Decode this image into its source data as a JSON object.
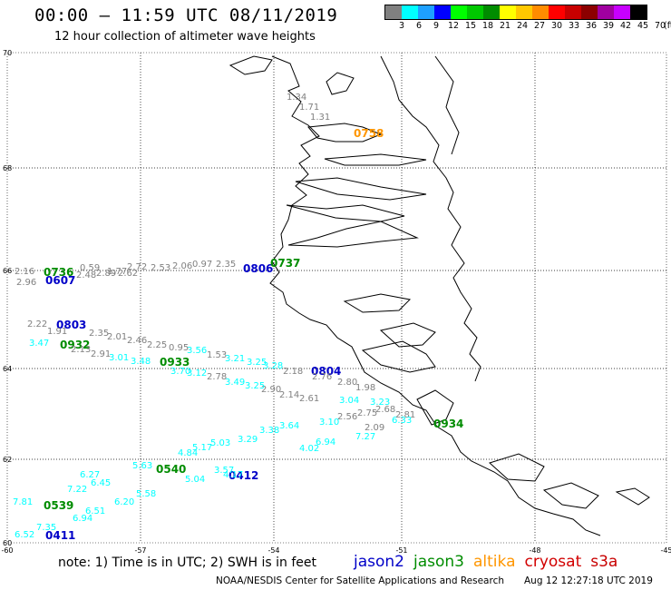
{
  "header": {
    "title": "00:00 – 11:59 UTC 08/11/2019",
    "subtitle": "12 hour collection of altimeter wave heights"
  },
  "legend": {
    "colors": [
      "#808080",
      "#00ffff",
      "#1ea0ff",
      "#0000ff",
      "#00ff00",
      "#00c800",
      "#008c00",
      "#ffff00",
      "#ffc800",
      "#ff8c00",
      "#ff0000",
      "#c80000",
      "#8c0000",
      "#a000a0",
      "#c800ff",
      "#000000"
    ],
    "labels": [
      "3",
      "6",
      "9",
      "12",
      "15",
      "18",
      "21",
      "24",
      "27",
      "30",
      "33",
      "36",
      "39",
      "42",
      "45",
      "70",
      "(ft)"
    ]
  },
  "axes": {
    "lat_labels": [
      "70",
      "68",
      "66",
      "64",
      "62",
      "60"
    ],
    "lon_labels": [
      "-60",
      "-57",
      "-54",
      "-51",
      "-48",
      "-45"
    ]
  },
  "tracks": {
    "colors": {
      "gray": "#808080",
      "cyan": "#00ffff",
      "jason2": "#0000c8",
      "jason3": "#008c00",
      "altika": "#ff9600",
      "cryosat": "#d20000",
      "s3a": "#c80000"
    },
    "labels": [
      {
        "t": "0607",
        "c": "jason2"
      },
      {
        "t": "0736",
        "c": "jason3"
      },
      {
        "t": "0806",
        "c": "jason2"
      },
      {
        "t": "0737",
        "c": "jason3"
      },
      {
        "t": "0803",
        "c": "jason2"
      },
      {
        "t": "0932",
        "c": "jason3"
      },
      {
        "t": "0933",
        "c": "jason3"
      },
      {
        "t": "0804",
        "c": "jason2"
      },
      {
        "t": "0934",
        "c": "jason3"
      },
      {
        "t": "0540",
        "c": "jason3"
      },
      {
        "t": "0412",
        "c": "jason2"
      },
      {
        "t": "0539",
        "c": "jason3"
      },
      {
        "t": "0411",
        "c": "jason2"
      },
      {
        "t": "0758",
        "c": "altika"
      }
    ],
    "values": [
      {
        "t": "1.34",
        "c": "gray"
      },
      {
        "t": "1.71",
        "c": "gray"
      },
      {
        "t": "1.31",
        "c": "gray"
      },
      {
        "t": "2.16",
        "c": "gray"
      },
      {
        "t": "2.96",
        "c": "gray"
      },
      {
        "t": "0.59",
        "c": "gray"
      },
      {
        "t": "1.77",
        "c": "gray"
      },
      {
        "t": "2.72",
        "c": "gray"
      },
      {
        "t": "2.53",
        "c": "gray"
      },
      {
        "t": "2.06",
        "c": "gray"
      },
      {
        "t": "0.97",
        "c": "gray"
      },
      {
        "t": "2.35",
        "c": "gray"
      },
      {
        "t": "2.48",
        "c": "gray"
      },
      {
        "t": "2.89",
        "c": "gray"
      },
      {
        "t": "2.62",
        "c": "gray"
      },
      {
        "t": "2.22",
        "c": "gray"
      },
      {
        "t": "1.91",
        "c": "gray"
      },
      {
        "t": "2.35",
        "c": "gray"
      },
      {
        "t": "2.01",
        "c": "gray"
      },
      {
        "t": "2.46",
        "c": "gray"
      },
      {
        "t": "2.25",
        "c": "gray"
      },
      {
        "t": "0.95",
        "c": "gray"
      },
      {
        "t": "1.53",
        "c": "gray"
      },
      {
        "t": "2.13",
        "c": "gray"
      },
      {
        "t": "2.91",
        "c": "gray"
      },
      {
        "t": "2.78",
        "c": "gray"
      },
      {
        "t": "2.18",
        "c": "gray"
      },
      {
        "t": "2.76",
        "c": "gray"
      },
      {
        "t": "2.80",
        "c": "gray"
      },
      {
        "t": "1.98",
        "c": "gray"
      },
      {
        "t": "2.90",
        "c": "gray"
      },
      {
        "t": "2.14",
        "c": "gray"
      },
      {
        "t": "2.61",
        "c": "gray"
      },
      {
        "t": "2.56",
        "c": "gray"
      },
      {
        "t": "2.75",
        "c": "gray"
      },
      {
        "t": "2.68",
        "c": "gray"
      },
      {
        "t": "2.81",
        "c": "gray"
      },
      {
        "t": "2.09",
        "c": "gray"
      },
      {
        "t": "3.47",
        "c": "cyan"
      },
      {
        "t": "3.01",
        "c": "cyan"
      },
      {
        "t": "3.48",
        "c": "cyan"
      },
      {
        "t": "3.70",
        "c": "cyan"
      },
      {
        "t": "3.12",
        "c": "cyan"
      },
      {
        "t": "3.56",
        "c": "cyan"
      },
      {
        "t": "3.21",
        "c": "cyan"
      },
      {
        "t": "3.25",
        "c": "cyan"
      },
      {
        "t": "3.49",
        "c": "cyan"
      },
      {
        "t": "3.25",
        "c": "cyan"
      },
      {
        "t": "3.28",
        "c": "cyan"
      },
      {
        "t": "3.04",
        "c": "cyan"
      },
      {
        "t": "3.23",
        "c": "cyan"
      },
      {
        "t": "3.10",
        "c": "cyan"
      },
      {
        "t": "3.64",
        "c": "cyan"
      },
      {
        "t": "3.38",
        "c": "cyan"
      },
      {
        "t": "3.29",
        "c": "cyan"
      },
      {
        "t": "5.03",
        "c": "cyan"
      },
      {
        "t": "5.17",
        "c": "cyan"
      },
      {
        "t": "4.84",
        "c": "cyan"
      },
      {
        "t": "5.63",
        "c": "cyan"
      },
      {
        "t": "6.27",
        "c": "cyan"
      },
      {
        "t": "6.45",
        "c": "cyan"
      },
      {
        "t": "7.22",
        "c": "cyan"
      },
      {
        "t": "7.81",
        "c": "cyan"
      },
      {
        "t": "6.94",
        "c": "cyan"
      },
      {
        "t": "7.27",
        "c": "cyan"
      },
      {
        "t": "3.57",
        "c": "cyan"
      },
      {
        "t": "4.17",
        "c": "cyan"
      },
      {
        "t": "5.04",
        "c": "cyan"
      },
      {
        "t": "5.58",
        "c": "cyan"
      },
      {
        "t": "6.20",
        "c": "cyan"
      },
      {
        "t": "6.51",
        "c": "cyan"
      },
      {
        "t": "6.94",
        "c": "cyan"
      },
      {
        "t": "7.35",
        "c": "cyan"
      },
      {
        "t": "6.52",
        "c": "cyan"
      },
      {
        "t": "6.33",
        "c": "cyan"
      },
      {
        "t": "4.02",
        "c": "cyan"
      },
      {
        "t": "3.51",
        "c": "cyan"
      }
    ]
  },
  "footer": {
    "note": "note:  1) Time is in UTC;  2) SWH is in feet",
    "satellites": [
      {
        "name": "jason2",
        "c": "jason2"
      },
      {
        "name": "jason3",
        "c": "jason3"
      },
      {
        "name": "altika",
        "c": "altika"
      },
      {
        "name": "cryosat",
        "c": "cryosat"
      },
      {
        "name": "s3a",
        "c": "s3a"
      }
    ],
    "credit": "NOAA/NESDIS Center for Satellite Applications and Research",
    "timestamp": "Aug 12 12:27:18 UTC 2019"
  }
}
